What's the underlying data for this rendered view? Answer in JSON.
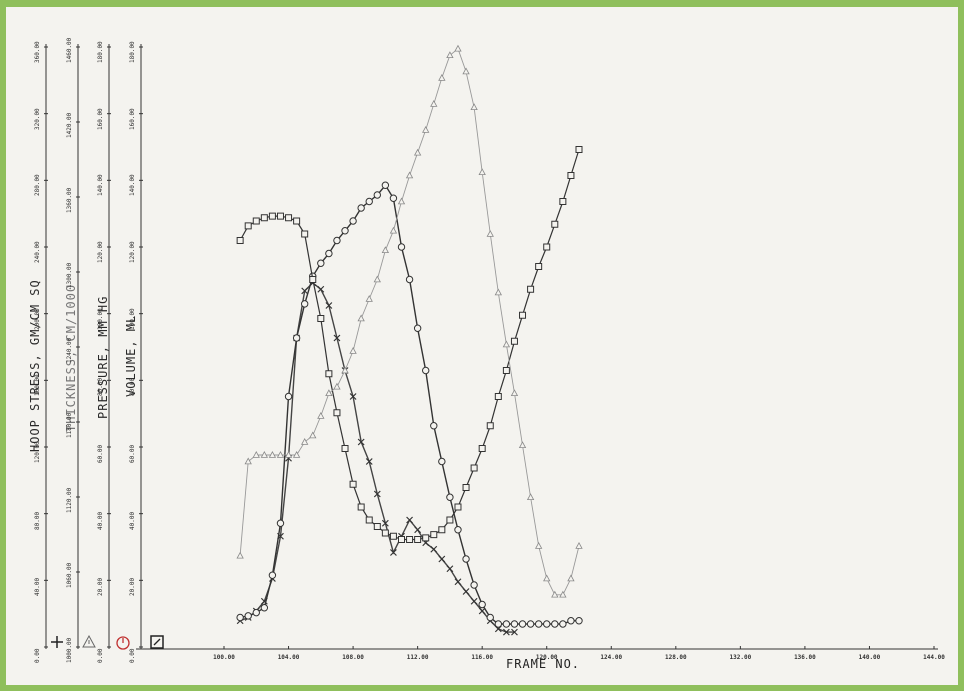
{
  "chart_data": {
    "type": "line",
    "xlabel": "FRAME NO.",
    "x_ticks": [
      "100.00",
      "104.00",
      "108.00",
      "112.00",
      "116.00",
      "120.00",
      "124.00",
      "128.00",
      "132.00",
      "136.00",
      "140.00",
      "144.00"
    ],
    "xlim": [
      100,
      144
    ],
    "axes": [
      {
        "label": "HOOP STRESS, GM/CM SQ",
        "ticks": [
          "0.00",
          "40.00",
          "80.00",
          "120.00",
          "160.00",
          "200.00",
          "240.00",
          "280.00",
          "320.00",
          "360.00"
        ],
        "ylim": [
          0,
          360
        ]
      },
      {
        "label": "THICKNESS, CM/1000",
        "ticks": [
          "1000.00",
          "1060.00",
          "1120.00",
          "1180.00",
          "1240.00",
          "1300.00",
          "1360.00",
          "1420.00",
          "1460.00"
        ],
        "ylim": [
          1000,
          1460
        ]
      },
      {
        "label": "PRESSURE, MM HG",
        "ticks": [
          "0.00",
          "20.00",
          "40.00",
          "60.00",
          "80.00",
          "100.00",
          "120.00",
          "140.00",
          "160.00",
          "180.00"
        ],
        "ylim": [
          0,
          180
        ]
      },
      {
        "label": "VOLUME, ML",
        "ticks": [
          "0.00",
          "20.00",
          "40.00",
          "60.00",
          "80.00",
          "100.00",
          "120.00",
          "140.00",
          "160.00",
          "180.00"
        ],
        "ylim": [
          0,
          180
        ]
      }
    ],
    "series": [
      {
        "marker": "cross",
        "axis": 0,
        "x": [
          101,
          101.5,
          102,
          102.5,
          103,
          103.5,
          104,
          104.5,
          105,
          105.5,
          106,
          106.5,
          107,
          107.5,
          108,
          108.5,
          109,
          109.5,
          110,
          110.5,
          111,
          111.5,
          112,
          112.5,
          113,
          113.5,
          114,
          114.5,
          115,
          115.5,
          116,
          116.5,
          117,
          117.5,
          118
        ],
        "y": [
          10,
          12,
          16,
          22,
          36,
          62,
          110,
          184,
          213,
          218,
          214,
          204,
          184,
          164,
          148,
          120,
          108,
          88,
          70,
          52,
          62,
          72,
          66,
          58,
          54,
          48,
          42,
          34,
          28,
          22,
          16,
          10,
          5,
          3,
          3
        ]
      },
      {
        "marker": "circle",
        "axis": 0,
        "x": [
          101,
          101.5,
          102,
          102.5,
          103,
          103.5,
          104,
          104.5,
          105,
          105.5,
          106,
          106.5,
          107,
          107.5,
          108,
          108.5,
          109,
          109.5,
          110,
          110.5,
          111,
          111.5,
          112,
          112.5,
          113,
          113.5,
          114,
          114.5,
          115,
          115.5,
          116,
          116.5,
          117,
          117.5,
          118,
          118.5,
          119,
          119.5,
          120,
          120.5,
          121,
          121.5,
          122
        ],
        "y": [
          12,
          13,
          15,
          18,
          38,
          70,
          148,
          184,
          205,
          222,
          230,
          236,
          244,
          250,
          256,
          264,
          268,
          272,
          278,
          270,
          240,
          220,
          190,
          164,
          130,
          108,
          86,
          66,
          48,
          32,
          20,
          12,
          8,
          8,
          8,
          8,
          8,
          8,
          8,
          8,
          8,
          10,
          10
        ]
      },
      {
        "marker": "square",
        "axis": 0,
        "x": [
          101,
          101.5,
          102,
          102.5,
          103,
          103.5,
          104,
          104.5,
          105,
          105.5,
          106,
          106.5,
          107,
          107.5,
          108,
          108.5,
          109,
          109.5,
          110,
          110.5,
          111,
          111.5,
          112,
          112.5,
          113,
          113.5,
          114,
          114.5,
          115,
          115.5,
          116,
          116.5,
          117,
          117.5,
          118,
          118.5,
          119,
          119.5,
          120,
          120.5,
          121,
          121.5,
          122
        ],
        "y": [
          244,
          253,
          256,
          258,
          259,
          259,
          258,
          256,
          248,
          220,
          196,
          162,
          138,
          116,
          94,
          80,
          72,
          68,
          64,
          62,
          60,
          60,
          60,
          61,
          63,
          66,
          72,
          80,
          92,
          104,
          116,
          130,
          148,
          164,
          182,
          198,
          214,
          228,
          240,
          254,
          268,
          284,
          300
        ]
      },
      {
        "marker": "triangle",
        "axis": 0,
        "x": [
          101,
          101.5,
          102,
          102.5,
          103,
          103.5,
          104,
          104.5,
          105,
          105.5,
          106,
          106.5,
          107,
          107.5,
          108,
          108.5,
          109,
          109.5,
          110,
          110.5,
          111,
          111.5,
          112,
          112.5,
          113,
          113.5,
          114,
          114.5,
          115,
          115.5,
          116,
          116.5,
          117,
          117.5,
          118,
          118.5,
          119,
          119.5,
          120,
          120.5,
          121,
          121.5,
          122
        ],
        "y": [
          50,
          108,
          112,
          112,
          112,
          112,
          112,
          112,
          120,
          124,
          136,
          150,
          154,
          164,
          176,
          196,
          208,
          220,
          238,
          250,
          268,
          284,
          298,
          312,
          328,
          344,
          358,
          362,
          348,
          326,
          286,
          248,
          212,
          180,
          150,
          118,
          86,
          56,
          36,
          26,
          26,
          36,
          56
        ]
      }
    ]
  },
  "legend_icons": [
    "plus-icon",
    "triangle-icon",
    "circle-icon",
    "square-icon"
  ]
}
